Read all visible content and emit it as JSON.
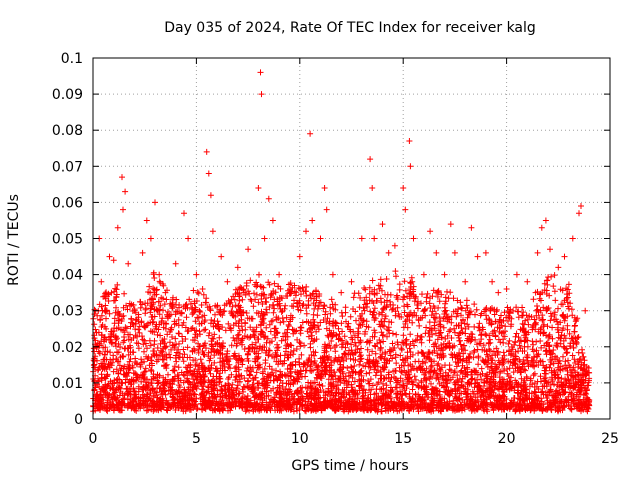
{
  "chart_data": {
    "type": "scatter",
    "title": "Day 035 of 2024, Rate Of TEC Index for receiver kalg",
    "xlabel": "GPS time / hours",
    "ylabel": "ROTI / TECUs",
    "xlim": [
      0,
      25
    ],
    "ylim": [
      0,
      0.1
    ],
    "xticks": [
      0,
      5,
      10,
      15,
      20,
      25
    ],
    "xtick_labels": [
      "0",
      "5",
      "10",
      "15",
      "20",
      "25"
    ],
    "yticks": [
      0,
      0.01,
      0.02,
      0.03,
      0.04,
      0.05,
      0.06,
      0.07,
      0.08,
      0.09,
      0.1
    ],
    "ytick_labels": [
      "0",
      "0.01",
      "0.02",
      "0.03",
      "0.04",
      "0.05",
      "0.06",
      "0.07",
      "0.08",
      "0.09",
      "0.1"
    ],
    "grid": true,
    "marker": "+",
    "color": "#ff0000",
    "series": [
      {
        "name": "ROTI",
        "points": [
          [
            0.1,
            0.012
          ],
          [
            0.3,
            0.05
          ],
          [
            0.4,
            0.038
          ],
          [
            0.6,
            0.03
          ],
          [
            0.8,
            0.045
          ],
          [
            1.0,
            0.044
          ],
          [
            1.2,
            0.053
          ],
          [
            1.4,
            0.067
          ],
          [
            1.45,
            0.058
          ],
          [
            1.55,
            0.063
          ],
          [
            1.7,
            0.043
          ],
          [
            2.0,
            0.03
          ],
          [
            2.4,
            0.046
          ],
          [
            2.6,
            0.055
          ],
          [
            2.8,
            0.05
          ],
          [
            3.0,
            0.06
          ],
          [
            3.2,
            0.04
          ],
          [
            3.5,
            0.035
          ],
          [
            4.0,
            0.043
          ],
          [
            4.4,
            0.057
          ],
          [
            4.6,
            0.05
          ],
          [
            5.0,
            0.04
          ],
          [
            5.3,
            0.036
          ],
          [
            5.5,
            0.074
          ],
          [
            5.6,
            0.068
          ],
          [
            5.7,
            0.062
          ],
          [
            5.8,
            0.052
          ],
          [
            6.2,
            0.045
          ],
          [
            6.5,
            0.038
          ],
          [
            7.0,
            0.042
          ],
          [
            7.5,
            0.047
          ],
          [
            8.0,
            0.064
          ],
          [
            8.1,
            0.096
          ],
          [
            8.15,
            0.09
          ],
          [
            8.3,
            0.05
          ],
          [
            8.5,
            0.061
          ],
          [
            8.7,
            0.055
          ],
          [
            9.0,
            0.04
          ],
          [
            9.5,
            0.035
          ],
          [
            10.0,
            0.045
          ],
          [
            10.3,
            0.052
          ],
          [
            10.5,
            0.079
          ],
          [
            10.6,
            0.055
          ],
          [
            11.0,
            0.05
          ],
          [
            11.2,
            0.064
          ],
          [
            11.3,
            0.058
          ],
          [
            11.6,
            0.04
          ],
          [
            12.0,
            0.035
          ],
          [
            12.5,
            0.038
          ],
          [
            13.0,
            0.05
          ],
          [
            13.4,
            0.072
          ],
          [
            13.5,
            0.064
          ],
          [
            13.6,
            0.05
          ],
          [
            14.0,
            0.054
          ],
          [
            14.3,
            0.046
          ],
          [
            14.6,
            0.048
          ],
          [
            15.0,
            0.064
          ],
          [
            15.1,
            0.058
          ],
          [
            15.3,
            0.077
          ],
          [
            15.35,
            0.07
          ],
          [
            15.5,
            0.05
          ],
          [
            16.0,
            0.04
          ],
          [
            16.3,
            0.052
          ],
          [
            16.6,
            0.046
          ],
          [
            17.0,
            0.04
          ],
          [
            17.3,
            0.054
          ],
          [
            17.5,
            0.046
          ],
          [
            18.0,
            0.038
          ],
          [
            18.3,
            0.053
          ],
          [
            18.6,
            0.045
          ],
          [
            19.0,
            0.046
          ],
          [
            19.3,
            0.038
          ],
          [
            19.6,
            0.035
          ],
          [
            20.0,
            0.036
          ],
          [
            20.5,
            0.04
          ],
          [
            21.0,
            0.038
          ],
          [
            21.5,
            0.046
          ],
          [
            21.7,
            0.053
          ],
          [
            21.9,
            0.055
          ],
          [
            22.1,
            0.047
          ],
          [
            22.5,
            0.042
          ],
          [
            22.8,
            0.045
          ],
          [
            23.2,
            0.05
          ],
          [
            23.5,
            0.057
          ],
          [
            23.6,
            0.059
          ],
          [
            23.8,
            0.03
          ]
        ],
        "dense_envelope": {
          "x_hours": [
            0,
            1,
            2,
            3,
            4,
            5,
            6,
            7,
            8,
            9,
            10,
            11,
            12,
            13,
            14,
            15,
            16,
            17,
            18,
            19,
            20,
            21,
            22,
            23,
            24
          ],
          "typical_max": [
            0.03,
            0.038,
            0.03,
            0.04,
            0.032,
            0.035,
            0.03,
            0.036,
            0.04,
            0.036,
            0.038,
            0.034,
            0.03,
            0.035,
            0.04,
            0.04,
            0.034,
            0.036,
            0.032,
            0.03,
            0.03,
            0.03,
            0.04,
            0.036,
            0.012
          ],
          "typical_min": 0.002
        }
      }
    ]
  }
}
